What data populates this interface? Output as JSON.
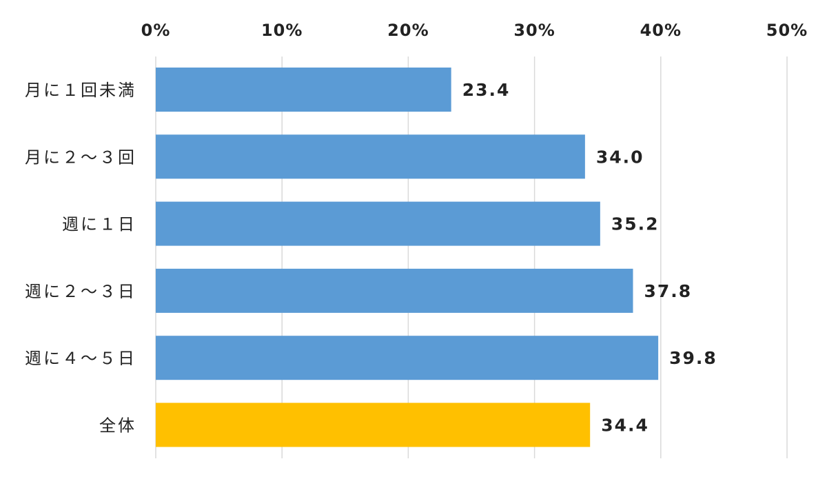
{
  "chart_data": {
    "type": "bar",
    "orientation": "horizontal",
    "title": "",
    "xlabel": "",
    "ylabel": "",
    "categories": [
      "月に１回未満",
      "月に２～３回",
      "週に１日",
      "週に２～３日",
      "週に４～５日",
      "全体"
    ],
    "values": [
      23.4,
      34.0,
      35.2,
      37.8,
      39.8,
      34.4
    ],
    "data_labels": [
      "23.4",
      "34.0",
      "35.2",
      "37.8",
      "39.8",
      "34.4"
    ],
    "xlim": [
      0,
      50
    ],
    "x_ticks": [
      0,
      10,
      20,
      30,
      40,
      50
    ],
    "x_tick_labels": [
      "0%",
      "10%",
      "20%",
      "30%",
      "40%",
      "50%"
    ],
    "x_axis_position": "top",
    "grid": true,
    "legend": "none",
    "colors": {
      "bar": "#5b9bd5",
      "highlight_bar": "#ffc000",
      "gridline": "#d9d9d9",
      "text": "#222222"
    },
    "highlight_index": 5
  }
}
